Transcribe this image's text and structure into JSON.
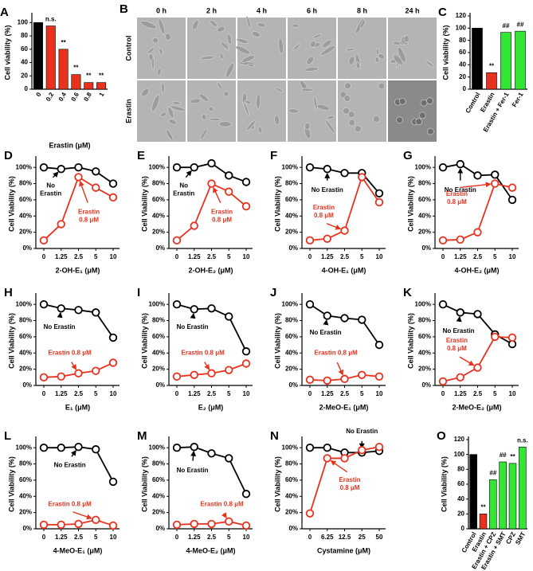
{
  "chart_data": [
    {
      "panel": "A",
      "type": "bar",
      "ylabel": "Cell viability (%)",
      "xlabel": "Erastin (μM)",
      "categories": [
        "0",
        "0.2",
        "0.4",
        "0.6",
        "0.8",
        "1"
      ],
      "values": [
        100,
        95,
        60,
        22,
        10,
        10
      ],
      "colors": [
        "#000000",
        "#e8321e",
        "#e8321e",
        "#e8321e",
        "#e8321e",
        "#e8321e"
      ],
      "annotations": [
        null,
        "n.s.",
        "**",
        "**",
        "**",
        "**"
      ],
      "ylim": [
        0,
        110
      ],
      "yticks": [
        0,
        20,
        40,
        60,
        80,
        100
      ]
    },
    {
      "panel": "C",
      "type": "bar",
      "ylabel": "Cell viability (%)",
      "categories": [
        "Control",
        "Erastin",
        "Erastin + Fer-1",
        "Fer-1"
      ],
      "values": [
        100,
        27,
        93,
        95
      ],
      "colors": [
        "#000000",
        "#e8321e",
        "#33e633",
        "#33e633"
      ],
      "annotations": [
        null,
        "**",
        "##",
        "##"
      ],
      "ylim": [
        0,
        120
      ],
      "yticks": [
        0,
        20,
        40,
        60,
        80,
        100,
        120
      ]
    },
    {
      "panel": "D",
      "type": "line",
      "ylabel": "Cell Viability (%)",
      "xlabel": "2-OH-E₁ (μM)",
      "categories": [
        "0",
        "1.25",
        "2.5",
        "5",
        "10"
      ],
      "series": [
        {
          "name": "No\nErastin",
          "color": "#000000",
          "values": [
            100,
            98,
            100,
            95,
            80
          ]
        },
        {
          "name": "Erastin\n0.8 μM",
          "color": "#e8321e",
          "values": [
            10,
            30,
            88,
            75,
            63
          ]
        }
      ],
      "ylim": [
        0,
        110
      ],
      "yticks": [
        {
          "value": 0,
          "label": "0%"
        },
        {
          "value": 20,
          "label": "20%"
        },
        {
          "value": 40,
          "label": "40%"
        },
        {
          "value": 60,
          "label": "60%"
        },
        {
          "value": 80,
          "label": "80%"
        },
        {
          "value": 100,
          "label": "100%"
        }
      ]
    },
    {
      "panel": "E",
      "type": "line",
      "ylabel": "Cell Viability (%)",
      "xlabel": "2-OH-E₂ (μM)",
      "categories": [
        "0",
        "1.25",
        "2.5",
        "5",
        "10"
      ],
      "series": [
        {
          "name": "No\nErastin",
          "color": "#000000",
          "values": [
            100,
            100,
            105,
            90,
            82
          ]
        },
        {
          "name": "Erastin\n0.8 μM",
          "color": "#e8321e",
          "values": [
            10,
            28,
            80,
            70,
            52
          ]
        }
      ],
      "ylim": [
        0,
        110
      ],
      "yticks": [
        {
          "value": 0,
          "label": "0%"
        },
        {
          "value": 20,
          "label": "20%"
        },
        {
          "value": 40,
          "label": "40%"
        },
        {
          "value": 60,
          "label": "60%"
        },
        {
          "value": 80,
          "label": "80%"
        },
        {
          "value": 100,
          "label": "100%"
        }
      ]
    },
    {
      "panel": "F",
      "type": "line",
      "ylabel": "Cell Viability (%)",
      "xlabel": "4-OH-E₁ (μM)",
      "categories": [
        "0",
        "1.25",
        "2.5",
        "5",
        "10"
      ],
      "series": [
        {
          "name": "No Erastin",
          "color": "#000000",
          "values": [
            100,
            98,
            93,
            93,
            68
          ]
        },
        {
          "name": "Erastin\n0.8 μM",
          "color": "#e8321e",
          "values": [
            10,
            12,
            22,
            88,
            57
          ]
        }
      ],
      "ylim": [
        0,
        110
      ],
      "yticks": [
        {
          "value": 0,
          "label": "0%"
        },
        {
          "value": 20,
          "label": "20%"
        },
        {
          "value": 40,
          "label": "40%"
        },
        {
          "value": 60,
          "label": "60%"
        },
        {
          "value": 80,
          "label": "80%"
        },
        {
          "value": 100,
          "label": "100%"
        }
      ]
    },
    {
      "panel": "G",
      "type": "line",
      "ylabel": "Cell Viability (%)",
      "xlabel": "4-OH-E₂ (μM)",
      "categories": [
        "0",
        "1.25",
        "2.5",
        "5",
        "10"
      ],
      "series": [
        {
          "name": "No Erastin",
          "color": "#000000",
          "values": [
            100,
            104,
            90,
            91,
            60
          ]
        },
        {
          "name": "Erastin\n0.8 μM",
          "color": "#e8321e",
          "values": [
            10,
            11,
            20,
            80,
            75
          ]
        }
      ],
      "ylim": [
        0,
        110
      ],
      "yticks": [
        {
          "value": 0,
          "label": "0%"
        },
        {
          "value": 20,
          "label": "20%"
        },
        {
          "value": 40,
          "label": "40%"
        },
        {
          "value": 60,
          "label": "60%"
        },
        {
          "value": 80,
          "label": "80%"
        },
        {
          "value": 100,
          "label": "100%"
        }
      ]
    },
    {
      "panel": "H",
      "type": "line",
      "ylabel": "Cell Viability (%)",
      "xlabel": "E₁ (μM)",
      "categories": [
        "0",
        "1.25",
        "2.5",
        "5",
        "10"
      ],
      "series": [
        {
          "name": "No Erastin",
          "color": "#000000",
          "values": [
            100,
            95,
            93,
            90,
            59
          ]
        },
        {
          "name": "Erastin 0.8 μM",
          "color": "#e8321e",
          "values": [
            10,
            11,
            15,
            18,
            28
          ]
        }
      ],
      "ylim": [
        0,
        110
      ],
      "yticks": [
        {
          "value": 0,
          "label": "0%"
        },
        {
          "value": 20,
          "label": "20%"
        },
        {
          "value": 40,
          "label": "40%"
        },
        {
          "value": 60,
          "label": "60%"
        },
        {
          "value": 80,
          "label": "80%"
        },
        {
          "value": 100,
          "label": "100%"
        }
      ]
    },
    {
      "panel": "I",
      "type": "line",
      "ylabel": "Cell Viability (%)",
      "xlabel": "E₂ (μM)",
      "categories": [
        "0",
        "1.25",
        "2.5",
        "5",
        "10"
      ],
      "series": [
        {
          "name": "No Erastin",
          "color": "#000000",
          "values": [
            100,
            94,
            95,
            85,
            42
          ]
        },
        {
          "name": "Erastin 0.8 μM",
          "color": "#e8321e",
          "values": [
            11,
            13,
            15,
            19,
            27
          ]
        }
      ],
      "ylim": [
        0,
        110
      ],
      "yticks": [
        {
          "value": 0,
          "label": "0%"
        },
        {
          "value": 20,
          "label": "20%"
        },
        {
          "value": 40,
          "label": "40%"
        },
        {
          "value": 60,
          "label": "60%"
        },
        {
          "value": 80,
          "label": "80%"
        },
        {
          "value": 100,
          "label": "100%"
        }
      ]
    },
    {
      "panel": "J",
      "type": "line",
      "ylabel": "Cell Viability (%)",
      "xlabel": "2-MeO-E₁ (μM)",
      "categories": [
        "0",
        "1.25",
        "2.5",
        "5",
        "10"
      ],
      "series": [
        {
          "name": "No Erastin",
          "color": "#000000",
          "values": [
            100,
            86,
            83,
            81,
            50
          ]
        },
        {
          "name": "Erastin 0.8 μM",
          "color": "#e8321e",
          "values": [
            7,
            6,
            8,
            13,
            11
          ]
        }
      ],
      "ylim": [
        0,
        110
      ],
      "yticks": [
        {
          "value": 0,
          "label": "0%"
        },
        {
          "value": 20,
          "label": "20%"
        },
        {
          "value": 40,
          "label": "40%"
        },
        {
          "value": 60,
          "label": "60%"
        },
        {
          "value": 80,
          "label": "80%"
        },
        {
          "value": 100,
          "label": "100%"
        }
      ]
    },
    {
      "panel": "K",
      "type": "line",
      "ylabel": "Cell Viability (%)",
      "xlabel": "2-MeO-E₂ (μM)",
      "categories": [
        "0",
        "1.25",
        "2.5",
        "5",
        "10"
      ],
      "series": [
        {
          "name": "No Erastin",
          "color": "#000000",
          "values": [
            100,
            90,
            88,
            63,
            51
          ]
        },
        {
          "name": "Erastin\n0.8 μM",
          "color": "#e8321e",
          "values": [
            5,
            10,
            22,
            60,
            59
          ]
        }
      ],
      "ylim": [
        0,
        110
      ],
      "yticks": [
        {
          "value": 0,
          "label": "0%"
        },
        {
          "value": 20,
          "label": "20%"
        },
        {
          "value": 40,
          "label": "40%"
        },
        {
          "value": 60,
          "label": "60%"
        },
        {
          "value": 80,
          "label": "80%"
        },
        {
          "value": 100,
          "label": "100%"
        }
      ]
    },
    {
      "panel": "L",
      "type": "line",
      "ylabel": "Cell Viability (%)",
      "xlabel": "4-MeO-E₁ (μM)",
      "categories": [
        "0",
        "1.25",
        "2.5",
        "5",
        "10"
      ],
      "series": [
        {
          "name": "No Erastin",
          "color": "#000000",
          "values": [
            100,
            100,
            101,
            98,
            58
          ]
        },
        {
          "name": "Erastin 0.8 μM",
          "color": "#e8321e",
          "values": [
            5,
            5,
            6,
            11,
            4
          ]
        }
      ],
      "ylim": [
        0,
        110
      ],
      "yticks": [
        {
          "value": 0,
          "label": "0%"
        },
        {
          "value": 20,
          "label": "20%"
        },
        {
          "value": 40,
          "label": "40%"
        },
        {
          "value": 60,
          "label": "60%"
        },
        {
          "value": 80,
          "label": "80%"
        },
        {
          "value": 100,
          "label": "100%"
        }
      ]
    },
    {
      "panel": "M",
      "type": "line",
      "ylabel": "Cell Viability (%)",
      "xlabel": "4-MeO-E₂ (μM)",
      "categories": [
        "0",
        "1.25",
        "2.5",
        "5",
        "10"
      ],
      "series": [
        {
          "name": "No Erastin",
          "color": "#000000",
          "values": [
            100,
            101,
            93,
            87,
            43
          ]
        },
        {
          "name": "Erastin 0.8 μM",
          "color": "#e8321e",
          "values": [
            5,
            6,
            6,
            9,
            4
          ]
        }
      ],
      "ylim": [
        0,
        110
      ],
      "yticks": [
        {
          "value": 0,
          "label": "0%"
        },
        {
          "value": 20,
          "label": "20%"
        },
        {
          "value": 40,
          "label": "40%"
        },
        {
          "value": 60,
          "label": "60%"
        },
        {
          "value": 80,
          "label": "80%"
        },
        {
          "value": 100,
          "label": "100%"
        }
      ]
    },
    {
      "panel": "N",
      "type": "line",
      "ylabel": "Cell Viability (%)",
      "xlabel": "Cystamine (μM)",
      "categories": [
        "0",
        "6.25",
        "12.5",
        "25",
        "50"
      ],
      "series": [
        {
          "name": "No Erastin",
          "color": "#000000",
          "values": [
            100,
            100,
            94,
            94,
            96
          ]
        },
        {
          "name": "Erastin\n0.8 μM",
          "color": "#e8321e",
          "values": [
            19,
            87,
            87,
            97,
            101
          ]
        }
      ],
      "ylim": [
        0,
        110
      ],
      "yticks": [
        {
          "value": 0,
          "label": "0%"
        },
        {
          "value": 20,
          "label": "20%"
        },
        {
          "value": 40,
          "label": "40%"
        },
        {
          "value": 60,
          "label": "60%"
        },
        {
          "value": 80,
          "label": "80%"
        },
        {
          "value": 100,
          "label": "100%"
        }
      ]
    },
    {
      "panel": "O",
      "type": "bar",
      "ylabel": "Cell Viability (%)",
      "categories": [
        "Control",
        "Erastin",
        "Erastin + CPZ",
        "Erastin + SMT",
        "CPZ",
        "SMT"
      ],
      "values": [
        100,
        20,
        66,
        90,
        88,
        110
      ],
      "colors": [
        "#000000",
        "#e8321e",
        "#33e633",
        "#33e633",
        "#33e633",
        "#33e633"
      ],
      "annotations": [
        null,
        "**",
        "##",
        "##",
        "**",
        "n.s."
      ],
      "ylim": [
        0,
        120
      ],
      "yticks": [
        0,
        20,
        40,
        60,
        80,
        100,
        120
      ]
    }
  ],
  "image_panel": {
    "panel": "B",
    "columns": [
      "0 h",
      "2 h",
      "4 h",
      "6 h",
      "8 h",
      "24 h"
    ],
    "rows": [
      "Control",
      "Erastin"
    ]
  }
}
